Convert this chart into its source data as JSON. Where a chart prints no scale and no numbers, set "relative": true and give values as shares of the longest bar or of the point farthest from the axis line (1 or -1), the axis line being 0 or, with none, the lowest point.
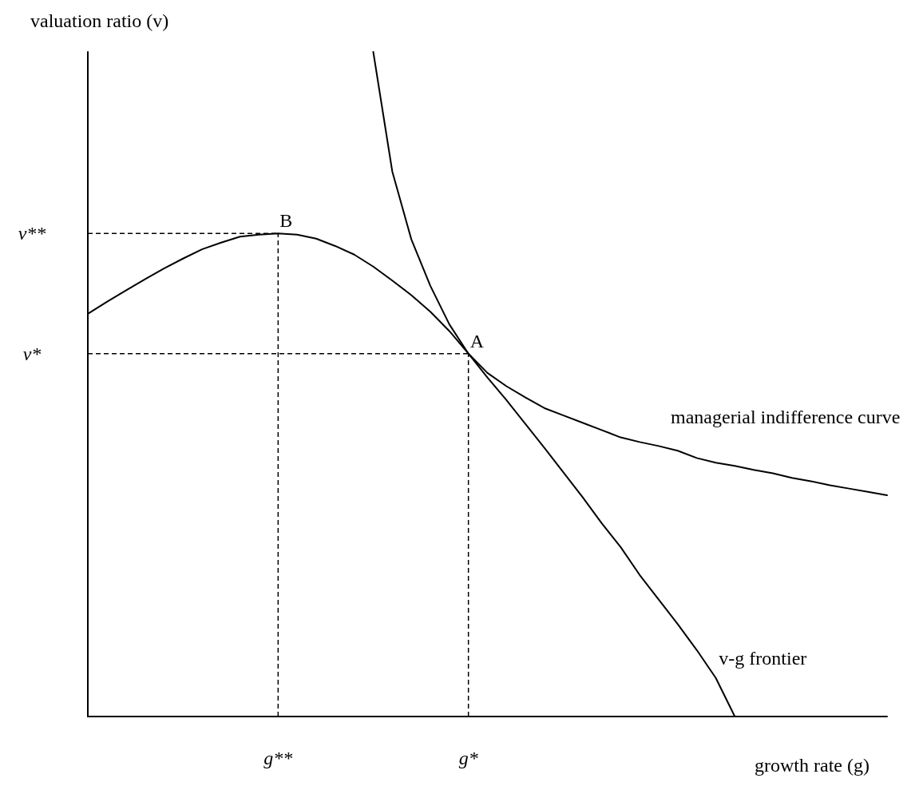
{
  "chart_data": {
    "type": "line",
    "relative": true,
    "xlabel": "growth rate (g)",
    "ylabel": "valuation ratio (v)",
    "categories": [
      null,
      null,
      null,
      null,
      null,
      null,
      null,
      null,
      null,
      null,
      "g**",
      null,
      null,
      null,
      null,
      null,
      null,
      null,
      null,
      null,
      "g*",
      null,
      null,
      null,
      null,
      null,
      null,
      null,
      null,
      null,
      null,
      null,
      null,
      null,
      null,
      null,
      null,
      null,
      null,
      null,
      null,
      null,
      null
    ],
    "marker": "none",
    "grid": false,
    "series": [
      {
        "name": "v-g frontier",
        "color": "#000000",
        "values": [
          0.606,
          0.624,
          0.641,
          0.658,
          0.674,
          0.689,
          0.703,
          0.713,
          0.722,
          0.725,
          0.727,
          0.725,
          0.719,
          0.708,
          0.695,
          0.677,
          0.656,
          0.634,
          0.609,
          0.58,
          0.546,
          0.51,
          0.476,
          0.44,
          0.404,
          0.367,
          0.33,
          0.291,
          0.255,
          0.213,
          0.176,
          0.139,
          0.1,
          0.058,
          0,
          null,
          null,
          null,
          null,
          null,
          null,
          null,
          null
        ]
      },
      {
        "name": "managerial indifference curve",
        "color": "#000000",
        "values": [
          null,
          null,
          null,
          null,
          null,
          null,
          null,
          null,
          null,
          null,
          null,
          null,
          null,
          null,
          null,
          1,
          0.82,
          0.718,
          0.648,
          0.59,
          0.546,
          0.517,
          0.497,
          0.48,
          0.464,
          0.453,
          0.442,
          0.431,
          0.42,
          0.413,
          0.407,
          0.4,
          0.389,
          0.382,
          0.377,
          0.371,
          0.366,
          0.359,
          0.354,
          0.348,
          0.343,
          0.338,
          0.333
        ]
      }
    ],
    "ref_lines": [
      {
        "axis": "y",
        "value": 0.727,
        "label": "v**",
        "line_style": "dashed",
        "color": "#000000"
      },
      {
        "axis": "y",
        "value": 0.546,
        "label": "v*",
        "line_style": "dashed",
        "color": "#000000"
      },
      {
        "axis": "x",
        "value": "g**",
        "label": null,
        "line_style": "dashed",
        "color": "#000000"
      },
      {
        "axis": "x",
        "value": "g*",
        "label": null,
        "line_style": "dashed",
        "color": "#000000"
      }
    ],
    "annotations": [
      {
        "text": "B",
        "x": "g**",
        "y": 0.727
      },
      {
        "text": "A",
        "x": "g*",
        "y": 0.546
      }
    ]
  }
}
